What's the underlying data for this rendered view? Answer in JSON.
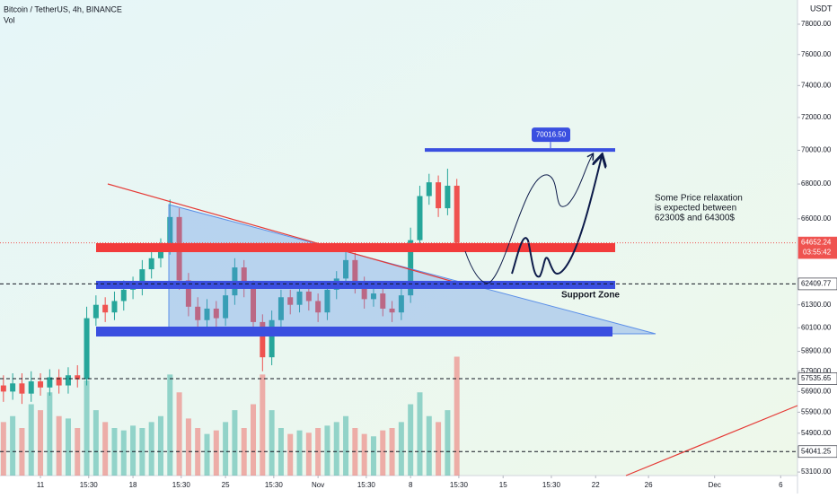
{
  "chart_data": {
    "type": "candlestick",
    "title": "Bitcoin / TetherUS, 4h, BINANCE",
    "volume_label": "Vol",
    "currency": "USDT",
    "x": [
      8.2,
      8.9,
      9.6,
      10.3,
      11.0,
      11.7,
      12.4,
      13.1,
      13.8,
      14.5,
      15.2,
      15.9,
      16.6,
      17.3,
      18.0,
      18.7,
      19.4,
      20.1,
      20.8,
      21.5,
      22.2,
      22.9,
      23.6,
      24.3,
      25.0,
      25.7,
      26.4,
      27.1,
      27.8,
      28.5,
      29.2,
      29.9,
      30.6,
      31.3,
      32.0,
      32.7,
      33.4,
      34.1,
      34.8,
      35.5,
      36.2,
      36.9,
      37.6,
      38.3,
      39.0,
      39.7,
      40.4,
      41.1,
      41.8,
      42.5
    ],
    "open": [
      57200,
      56900,
      57300,
      56800,
      57400,
      57100,
      57600,
      57200,
      57700,
      57500,
      60600,
      61300,
      60900,
      61500,
      62100,
      62300,
      63200,
      63800,
      64400,
      66100,
      62600,
      61200,
      60500,
      61100,
      60600,
      61800,
      63300,
      62200,
      60400,
      58600,
      60500,
      61700,
      61300,
      62000,
      61500,
      60900,
      62100,
      62700,
      63700,
      62400,
      61600,
      61900,
      61100,
      60900,
      61800,
      64800,
      67300,
      68100,
      66600,
      67900
    ],
    "high": [
      57700,
      57800,
      57800,
      57900,
      57800,
      58000,
      58000,
      58100,
      58200,
      61200,
      61800,
      61700,
      62000,
      62600,
      62800,
      63700,
      64300,
      64900,
      67100,
      66600,
      63000,
      61700,
      61600,
      61500,
      62300,
      63800,
      63700,
      62600,
      60800,
      61000,
      62100,
      62100,
      62500,
      62400,
      61900,
      62500,
      63100,
      64300,
      64100,
      62800,
      62300,
      62300,
      61500,
      62200,
      65500,
      67900,
      68600,
      68500,
      68900,
      68300
    ],
    "low": [
      56400,
      56500,
      56300,
      56400,
      56700,
      56700,
      56800,
      56800,
      57100,
      57200,
      60200,
      60400,
      60500,
      61000,
      61600,
      61800,
      62700,
      63300,
      64000,
      62100,
      60700,
      60000,
      60000,
      60100,
      60200,
      61300,
      61700,
      59900,
      57900,
      58200,
      60000,
      60800,
      60900,
      61000,
      60400,
      60500,
      61600,
      62200,
      61900,
      61100,
      61200,
      60700,
      60400,
      60500,
      61400,
      64300,
      66800,
      66100,
      66200,
      64300
    ],
    "close": [
      56900,
      57300,
      56800,
      57400,
      57100,
      57600,
      57200,
      57700,
      57500,
      60600,
      61300,
      60900,
      61500,
      62100,
      62300,
      63200,
      63800,
      64400,
      66100,
      62600,
      61200,
      60500,
      61100,
      60600,
      61800,
      63300,
      62200,
      60400,
      58600,
      60500,
      61700,
      61300,
      62000,
      61500,
      60900,
      62100,
      62700,
      63700,
      62400,
      61600,
      61900,
      61100,
      60900,
      61800,
      64800,
      67300,
      68100,
      66600,
      67900,
      64652.24
    ],
    "volume": [
      45,
      50,
      40,
      60,
      55,
      70,
      50,
      48,
      40,
      80,
      55,
      45,
      40,
      38,
      42,
      40,
      45,
      50,
      85,
      70,
      48,
      40,
      35,
      38,
      45,
      55,
      40,
      60,
      85,
      55,
      40,
      35,
      38,
      36,
      40,
      42,
      45,
      50,
      40,
      35,
      33,
      38,
      40,
      45,
      60,
      70,
      50,
      45,
      55,
      100
    ],
    "volume_lim": [
      0,
      400
    ],
    "up_color": "#26a69a",
    "down_color": "#ef5350",
    "xlim": [
      7.94,
      68.27
    ],
    "xticks": [
      {
        "value": 11,
        "label": "11"
      },
      {
        "value": 14.65,
        "label": "15:30"
      },
      {
        "value": 18,
        "label": "18"
      },
      {
        "value": 21.65,
        "label": "15:30"
      },
      {
        "value": 25,
        "label": "25"
      },
      {
        "value": 28.65,
        "label": "15:30"
      },
      {
        "value": 32,
        "label": "Nov"
      },
      {
        "value": 35.65,
        "label": "15:30"
      },
      {
        "value": 39,
        "label": "8"
      },
      {
        "value": 42.65,
        "label": "15:30"
      },
      {
        "value": 46,
        "label": "15"
      },
      {
        "value": 49.65,
        "label": "15:30"
      },
      {
        "value": 53,
        "label": "22"
      },
      {
        "value": 57,
        "label": "26"
      },
      {
        "value": 62,
        "label": "Dec"
      },
      {
        "value": 67,
        "label": "6"
      }
    ],
    "ylim": [
      52940,
      79640
    ],
    "log_scale": true,
    "yticks": [
      {
        "value": 78000,
        "label": "78000.00"
      },
      {
        "value": 76000,
        "label": "76000.00"
      },
      {
        "value": 74000,
        "label": "74000.00"
      },
      {
        "value": 72000,
        "label": "72000.00"
      },
      {
        "value": 70000,
        "label": "70000.00"
      },
      {
        "value": 68000,
        "label": "68000.00"
      },
      {
        "value": 66000,
        "label": "66000.00"
      },
      {
        "value": 61300,
        "label": "61300.00"
      },
      {
        "value": 60100,
        "label": "60100.00"
      },
      {
        "value": 58900,
        "label": "58900.00"
      },
      {
        "value": 57900,
        "label": "57900.00"
      },
      {
        "value": 56900,
        "label": "56900.00"
      },
      {
        "value": 55900,
        "label": "55900.00"
      },
      {
        "value": 54900,
        "label": "54900.00"
      },
      {
        "value": 53100,
        "label": "53100.00"
      }
    ],
    "price_lines": [
      {
        "value": 64652.24,
        "countdown": "03:55:42",
        "color": "#ef5350"
      },
      {
        "value": 62409.77,
        "color": "#131722"
      },
      {
        "value": 57535.65,
        "color": "#131722"
      },
      {
        "value": 54041.25,
        "color": "#131722"
      }
    ],
    "target": {
      "value": 70016.5,
      "label": "70016.50",
      "color": "#3a4fe0"
    },
    "annotation": [
      "Some Price relaxation",
      "is expected between",
      "62300$ and 64300$"
    ],
    "support_label": "Support Zone"
  }
}
